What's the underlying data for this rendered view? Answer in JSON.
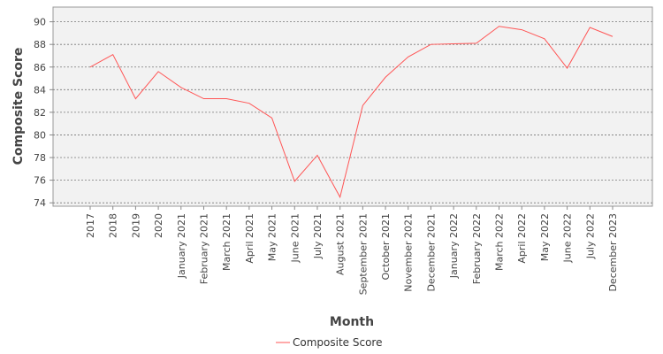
{
  "chart_data": {
    "type": "line",
    "x_label": "Month",
    "y_label": "Composite Score",
    "categories": [
      "2017",
      "2018",
      "2019",
      "2020",
      "January 2021",
      "February 2021",
      "March 2021",
      "April 2021",
      "May 2021",
      "June 2021",
      "July 2021",
      "August 2021",
      "September 2021",
      "October 2021",
      "November 2021",
      "December 2021",
      "January 2022",
      "February 2022",
      "March 2022",
      "April 2022",
      "May 2022",
      "June 2022",
      "July 2022",
      "December 2023"
    ],
    "series": [
      {
        "name": "Composite Score",
        "color": "#ff5555",
        "values": [
          86.0,
          87.1,
          83.2,
          85.6,
          84.2,
          83.2,
          83.2,
          82.8,
          81.5,
          75.9,
          78.2,
          74.5,
          82.6,
          85.1,
          86.9,
          88.0,
          88.05,
          88.1,
          89.6,
          89.3,
          88.5,
          85.9,
          89.5,
          88.7
        ]
      }
    ],
    "ylim": [
      73.7,
      91.3
    ],
    "yticks": [
      74,
      76,
      78,
      80,
      82,
      84,
      86,
      88,
      90
    ],
    "grid": true,
    "legend": "bottom"
  }
}
